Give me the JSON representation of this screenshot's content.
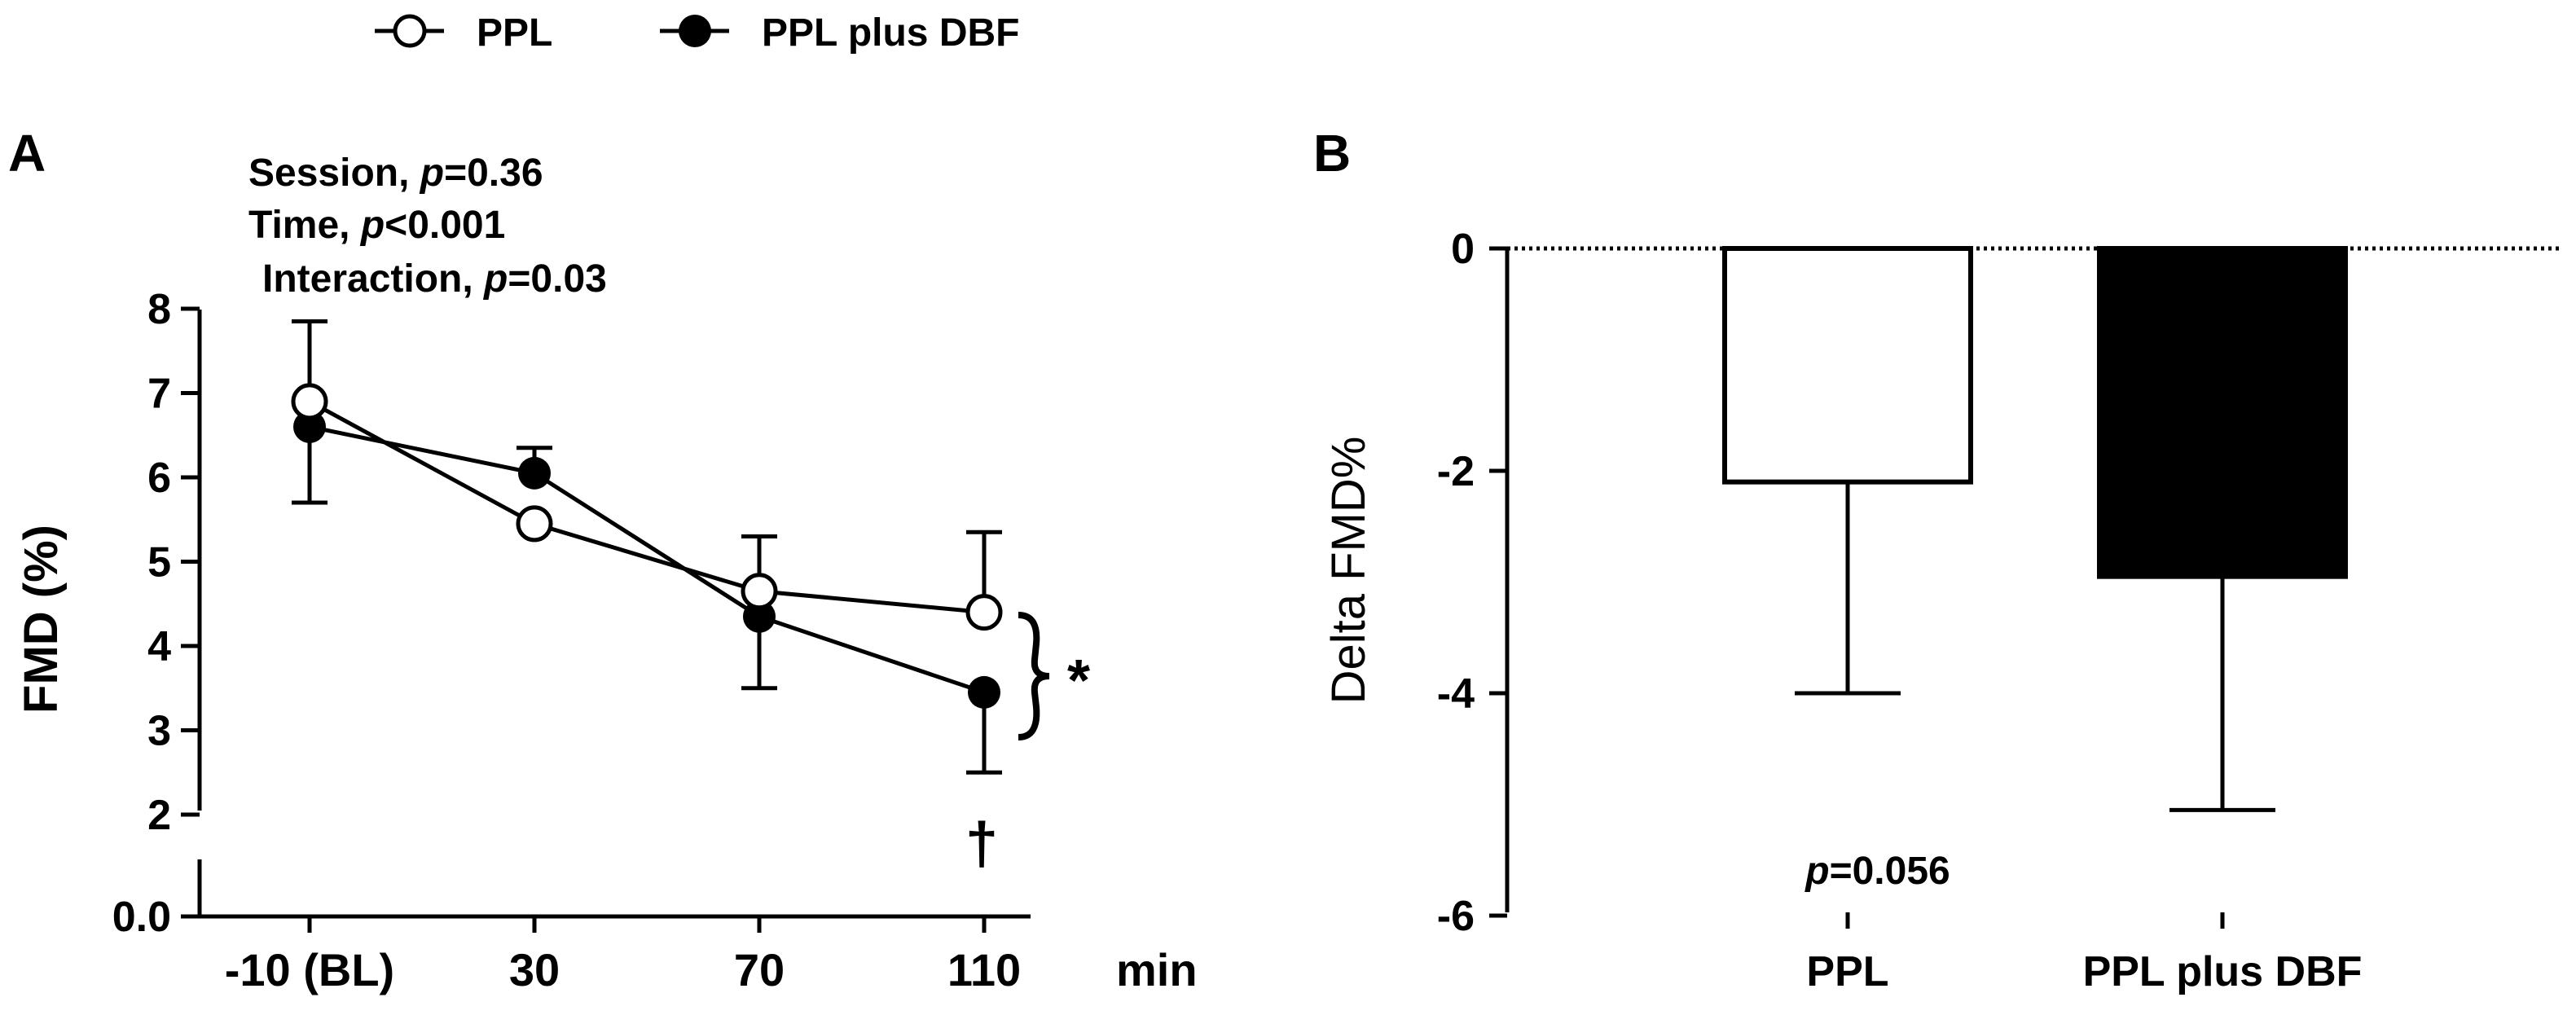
{
  "legend": {
    "items": [
      {
        "label": "PPL",
        "marker": "open-circle"
      },
      {
        "label": "PPL plus DBF",
        "marker": "filled-circle"
      }
    ]
  },
  "panel_a": {
    "letter": "A",
    "stats": [
      {
        "prefix": "Session, ",
        "p": "p",
        "value": "=0.36"
      },
      {
        "prefix": "Time, ",
        "p": "p",
        "value": "<0.001"
      },
      {
        "prefix": "Interaction, ",
        "p": "p",
        "value": "=0.03"
      }
    ],
    "ylabel": "FMD (%)",
    "xunit": "min",
    "star": "*",
    "dagger": "†"
  },
  "panel_b": {
    "letter": "B",
    "ylabel": "Delta FMD%",
    "pvalue_p": "p",
    "pvalue_value": "=0.056"
  },
  "chart_data": [
    {
      "type": "line",
      "panel": "A",
      "xlabel": "min",
      "ylabel": "FMD (%)",
      "categories": [
        "-10 (BL)",
        "30",
        "70",
        "110"
      ],
      "y_ticks": [
        "0.0",
        "2",
        "3",
        "4",
        "5",
        "6",
        "7",
        "8"
      ],
      "axis_break": "between 0.0 and 2",
      "ylim": [
        2,
        8
      ],
      "series": [
        {
          "name": "PPL",
          "marker": "open",
          "values": [
            6.9,
            5.45,
            4.65,
            4.4
          ],
          "error_up": [
            0.95,
            0,
            0.65,
            0.95
          ]
        },
        {
          "name": "PPL plus DBF",
          "marker": "filled",
          "values": [
            6.6,
            6.05,
            4.35,
            3.45
          ],
          "error_down": [
            0.9,
            0,
            0.85,
            0.95
          ],
          "error_up": [
            0,
            0.3,
            0,
            0
          ]
        }
      ],
      "annotations": [
        "Session, p=0.36",
        "Time, p<0.001",
        "Interaction, p=0.03",
        "*",
        "†"
      ]
    },
    {
      "type": "bar",
      "panel": "B",
      "ylabel": "Delta FMD%",
      "categories": [
        "PPL",
        "PPL plus DBF"
      ],
      "values": [
        -2.1,
        -2.95
      ],
      "error_down": [
        1.9,
        2.1
      ],
      "fill": [
        "#ffffff",
        "#000000"
      ],
      "ylim": [
        -6,
        0
      ],
      "y_ticks": [
        "0",
        "-2",
        "-4",
        "-6"
      ],
      "reference_line": "dotted at 0",
      "annotation": "p=0.056"
    }
  ]
}
